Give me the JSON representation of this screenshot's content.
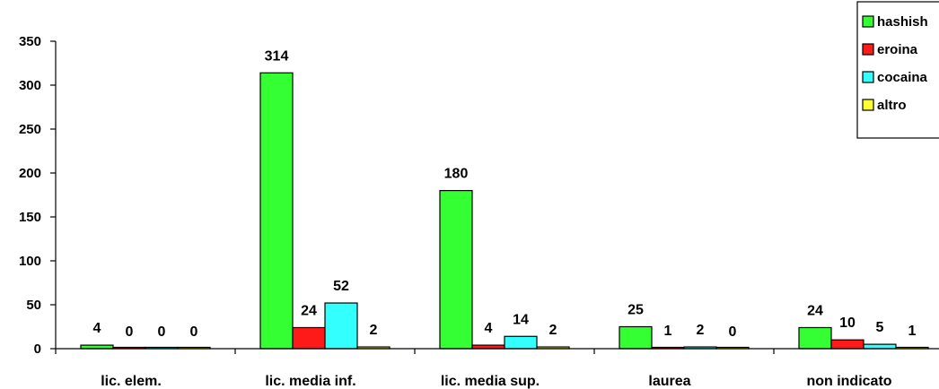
{
  "chart_data": {
    "type": "bar",
    "categories": [
      "lic. elem.",
      "lic. media inf.",
      "lic. media sup.",
      "laurea",
      "non indicato"
    ],
    "series": [
      {
        "name": "hashish",
        "color": "#33ff33",
        "values": [
          4,
          314,
          180,
          25,
          24
        ]
      },
      {
        "name": "eroina",
        "color": "#ff1a1a",
        "values": [
          0,
          24,
          4,
          1,
          10
        ]
      },
      {
        "name": "cocaina",
        "color": "#33ffff",
        "values": [
          0,
          52,
          14,
          2,
          5
        ]
      },
      {
        "name": "altro",
        "color": "#ffff33",
        "values": [
          0,
          2,
          2,
          0,
          1
        ]
      }
    ],
    "yticks": [
      "0",
      "50",
      "100",
      "150",
      "200",
      "250",
      "300",
      "350"
    ],
    "ylim": [
      0,
      350
    ],
    "xlabel": "",
    "ylabel": "",
    "title": "",
    "grid": false,
    "legend_position": "top-right"
  }
}
